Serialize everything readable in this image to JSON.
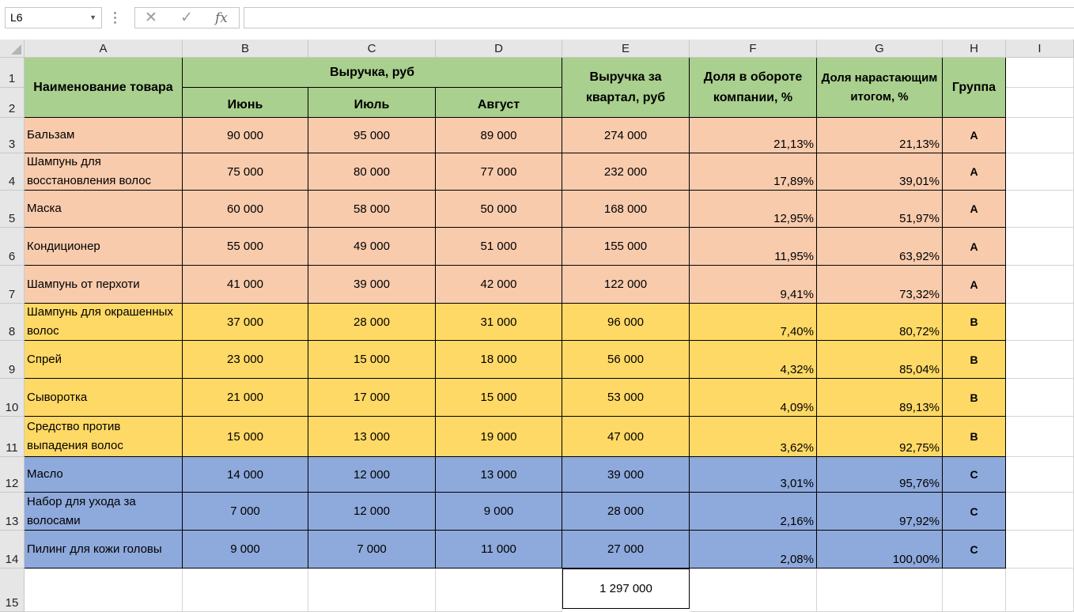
{
  "formula_bar": {
    "name_box": "L6",
    "formula": ""
  },
  "columns": [
    "A",
    "B",
    "C",
    "D",
    "E",
    "F",
    "G",
    "H",
    "I"
  ],
  "rows": [
    "1",
    "2",
    "3",
    "4",
    "5",
    "6",
    "7",
    "8",
    "9",
    "10",
    "11",
    "12",
    "13",
    "14",
    "15"
  ],
  "header": {
    "name": "Наименование товара",
    "revenue": "Выручка, руб",
    "june": "Июнь",
    "july": "Июль",
    "august": "Август",
    "quarter": "Выручка за квартал, руб",
    "share": "Доля в обороте компании, %",
    "cumulative": "Доля нарастающим итогом, %",
    "group": "Группа"
  },
  "items": [
    {
      "name": "Бальзам",
      "jun": "90 000",
      "jul": "95 000",
      "aug": "89 000",
      "q": "274 000",
      "share": "21,13%",
      "cum": "21,13%",
      "grp": "A"
    },
    {
      "name": "Шампунь для восстановления волос",
      "jun": "75 000",
      "jul": "80 000",
      "aug": "77 000",
      "q": "232 000",
      "share": "17,89%",
      "cum": "39,01%",
      "grp": "A"
    },
    {
      "name": "Маска",
      "jun": "60 000",
      "jul": "58 000",
      "aug": "50 000",
      "q": "168 000",
      "share": "12,95%",
      "cum": "51,97%",
      "grp": "A"
    },
    {
      "name": "Кондиционер",
      "jun": "55 000",
      "jul": "49 000",
      "aug": "51 000",
      "q": "155 000",
      "share": "11,95%",
      "cum": "63,92%",
      "grp": "A"
    },
    {
      "name": "Шампунь от перхоти",
      "jun": "41 000",
      "jul": "39 000",
      "aug": "42 000",
      "q": "122 000",
      "share": "9,41%",
      "cum": "73,32%",
      "grp": "A"
    },
    {
      "name": "Шампунь для окрашенных волос",
      "jun": "37 000",
      "jul": "28 000",
      "aug": "31 000",
      "q": "96 000",
      "share": "7,40%",
      "cum": "80,72%",
      "grp": "B"
    },
    {
      "name": "Спрей",
      "jun": "23 000",
      "jul": "15 000",
      "aug": "18 000",
      "q": "56 000",
      "share": "4,32%",
      "cum": "85,04%",
      "grp": "B"
    },
    {
      "name": "Сыворотка",
      "jun": "21 000",
      "jul": "17 000",
      "aug": "15 000",
      "q": "53 000",
      "share": "4,09%",
      "cum": "89,13%",
      "grp": "B"
    },
    {
      "name": "Средство против выпадения волос",
      "jun": "15 000",
      "jul": "13 000",
      "aug": "19 000",
      "q": "47 000",
      "share": "3,62%",
      "cum": "92,75%",
      "grp": "B"
    },
    {
      "name": "Масло",
      "jun": "14 000",
      "jul": "12 000",
      "aug": "13 000",
      "q": "39 000",
      "share": "3,01%",
      "cum": "95,76%",
      "grp": "C"
    },
    {
      "name": "Набор для ухода за волосами",
      "jun": "7 000",
      "jul": "12 000",
      "aug": "9 000",
      "q": "28 000",
      "share": "2,16%",
      "cum": "97,92%",
      "grp": "C"
    },
    {
      "name": "Пилинг для кожи головы",
      "jun": "9 000",
      "jul": "7 000",
      "aug": "11 000",
      "q": "27 000",
      "share": "2,08%",
      "cum": "100,00%",
      "grp": "C"
    }
  ],
  "total": "1 297 000",
  "colors": {
    "header": "#a9d08e",
    "group_a": "#f8cbad",
    "group_b": "#ffd966",
    "group_c": "#8ea9db"
  }
}
